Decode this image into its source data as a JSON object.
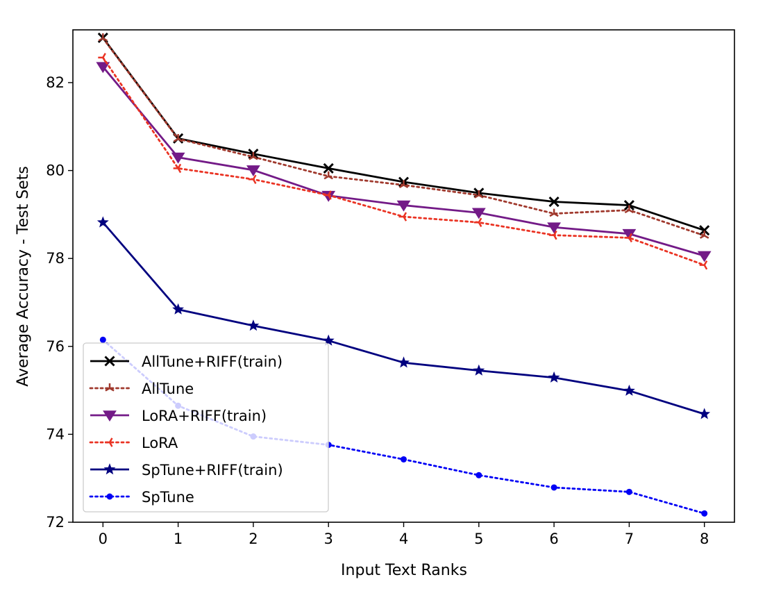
{
  "chart_data": {
    "type": "line",
    "title": "",
    "xlabel": "Input Text Ranks",
    "ylabel": "Average Accuracy - Test Sets",
    "xlim": [
      -0.4,
      8.4
    ],
    "ylim": [
      72,
      83.2
    ],
    "x": [
      0,
      1,
      2,
      3,
      4,
      5,
      6,
      7,
      8
    ],
    "x_ticks": [
      0,
      1,
      2,
      3,
      4,
      5,
      6,
      7,
      8
    ],
    "y_ticks": [
      72,
      74,
      76,
      78,
      80,
      82
    ],
    "grid": false,
    "legend_position": "lower-left",
    "series": [
      {
        "name": "AllTune+RIFF(train)",
        "color": "#000000",
        "linestyle": "solid",
        "marker": "x",
        "values": [
          83.02,
          80.73,
          80.38,
          80.05,
          79.74,
          79.49,
          79.29,
          79.21,
          78.64
        ]
      },
      {
        "name": "AllTune",
        "color": "#a0392d",
        "linestyle": "dotted",
        "marker": "tri-up",
        "values": [
          83.01,
          80.72,
          80.31,
          79.87,
          79.67,
          79.44,
          79.02,
          79.1,
          78.52
        ]
      },
      {
        "name": "LoRA+RIFF(train)",
        "color": "#731a87",
        "linestyle": "solid",
        "marker": "triangle-down",
        "values": [
          82.36,
          80.3,
          80.01,
          79.43,
          79.21,
          79.04,
          78.71,
          78.56,
          78.06
        ]
      },
      {
        "name": "LoRA",
        "color": "#ea3323",
        "linestyle": "dotted",
        "marker": "tri-left",
        "values": [
          82.57,
          80.05,
          79.8,
          79.44,
          78.95,
          78.82,
          78.53,
          78.47,
          77.85
        ]
      },
      {
        "name": "SpTune+RIFF(train)",
        "color": "#00007f",
        "linestyle": "solid",
        "marker": "star",
        "values": [
          78.82,
          76.84,
          76.47,
          76.13,
          75.63,
          75.45,
          75.29,
          74.99,
          74.46
        ]
      },
      {
        "name": "SpTune",
        "color": "#0000f5",
        "linestyle": "dotted",
        "marker": "circle",
        "values": [
          76.15,
          74.65,
          73.95,
          73.76,
          73.43,
          73.07,
          72.79,
          72.69,
          72.2
        ]
      }
    ]
  }
}
